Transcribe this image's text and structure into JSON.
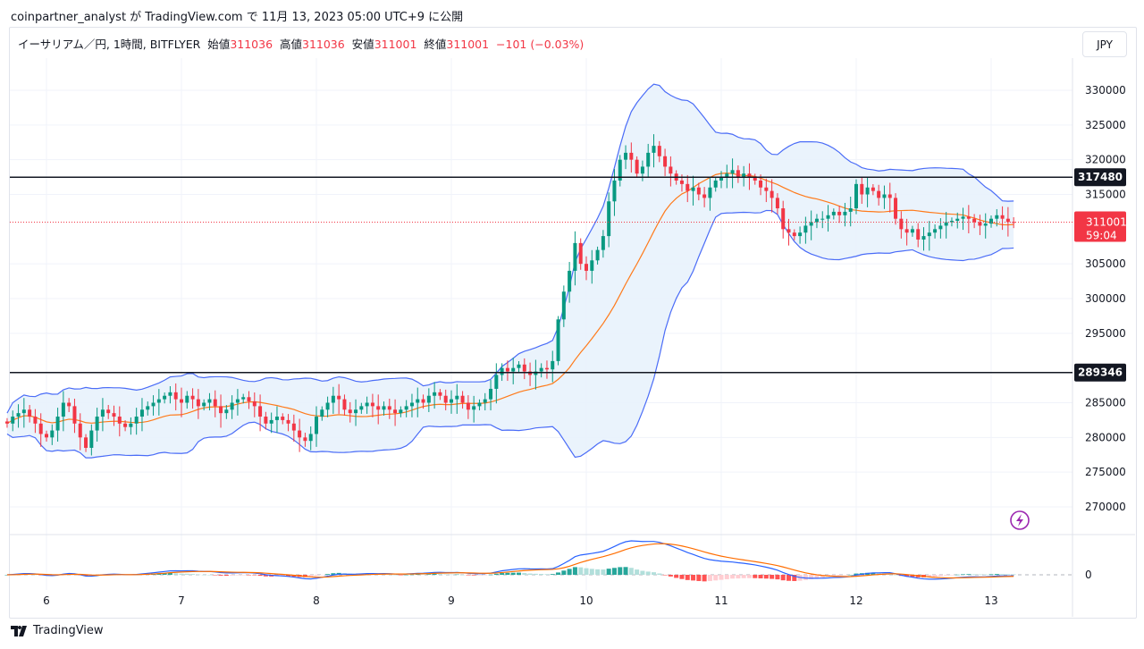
{
  "published": "coinpartner_analyst が TradingView.com で 11月 13, 2023 05:00 UTC+9 に公開",
  "legend": {
    "symbol": "イーサリアム／円, 1時間, BITFLYER",
    "open_label": "始値",
    "open": "311036",
    "high_label": "高値",
    "high": "311036",
    "low_label": "安値",
    "low": "311001",
    "close_label": "終値",
    "close": "311001",
    "change": "−101 (−0.03%)"
  },
  "currency_button": "JPY",
  "footer_logo": "TradingView",
  "icons": [
    "lightning-icon",
    "tradingview-logo-icon"
  ],
  "colors": {
    "up": "#089981",
    "down": "#f23645",
    "band": "#4a6cf7",
    "band_fill": "#e8f2fc",
    "ma": "#ff7a1a",
    "hline": "#131722",
    "price_tag": "#f23645"
  },
  "chart_data": {
    "type": "candlestick",
    "indicators": [
      "Bollinger Bands",
      "MACD"
    ],
    "ylim": [
      265000,
      332000
    ],
    "y_ticks": [
      "330000",
      "325000",
      "320000",
      "315000",
      "305000",
      "300000",
      "295000",
      "285000",
      "280000",
      "275000",
      "270000"
    ],
    "x_ticks": [
      "6",
      "7",
      "8",
      "9",
      "10",
      "11",
      "12",
      "13"
    ],
    "macd_ticks": [
      "0"
    ],
    "horizontal_lines": [
      {
        "value": 317480,
        "label": "317480"
      },
      {
        "value": 289346,
        "label": "289346"
      }
    ],
    "last_price": {
      "value": 311001,
      "label": "311001",
      "countdown": "59:04"
    },
    "interval": "1h",
    "bars_before_first_tick": 7,
    "closes": [
      282000,
      283000,
      283500,
      284000,
      283000,
      282000,
      280500,
      280000,
      281000,
      283000,
      285000,
      284500,
      282000,
      280000,
      278500,
      281000,
      283000,
      284000,
      283500,
      283000,
      282000,
      281500,
      282000,
      283000,
      284000,
      284500,
      285000,
      285500,
      286000,
      286500,
      285500,
      285000,
      286000,
      285500,
      284500,
      285000,
      285500,
      284500,
      283500,
      284000,
      285000,
      285500,
      285800,
      285200,
      284500,
      283000,
      282000,
      282500,
      283000,
      282500,
      282000,
      281000,
      280000,
      279500,
      280500,
      283000,
      284000,
      285000,
      286000,
      285500,
      284000,
      283500,
      284000,
      284500,
      285000,
      284500,
      284000,
      284500,
      284000,
      283500,
      284000,
      284500,
      285000,
      285500,
      285000,
      286000,
      286500,
      286000,
      285000,
      285500,
      286000,
      285000,
      284000,
      284500,
      285000,
      285500,
      287000,
      289000,
      290000,
      289500,
      290000,
      290500,
      289500,
      289000,
      289500,
      290000,
      289800,
      291000,
      297000,
      301000,
      304000,
      308000,
      305000,
      304000,
      305500,
      307000,
      309000,
      314000,
      317000,
      320000,
      321000,
      320000,
      318000,
      319000,
      321000,
      322000,
      320500,
      319000,
      318000,
      317000,
      316500,
      315500,
      316000,
      315000,
      314500,
      316000,
      317000,
      317500,
      318000,
      318500,
      317500,
      318000,
      317500,
      317000,
      316000,
      315500,
      314500,
      313000,
      310000,
      309500,
      309000,
      309500,
      310500,
      311000,
      311500,
      311500,
      312000,
      312500,
      312000,
      312500,
      313000,
      316500,
      315000,
      316000,
      315500,
      314500,
      315000,
      314500,
      311500,
      310000,
      309500,
      310000,
      308500,
      309000,
      309500,
      310000,
      310500,
      311000,
      311200,
      311500,
      311800,
      311500,
      311000,
      310500,
      310800,
      311500,
      312000,
      311500,
      311036,
      311001
    ]
  }
}
